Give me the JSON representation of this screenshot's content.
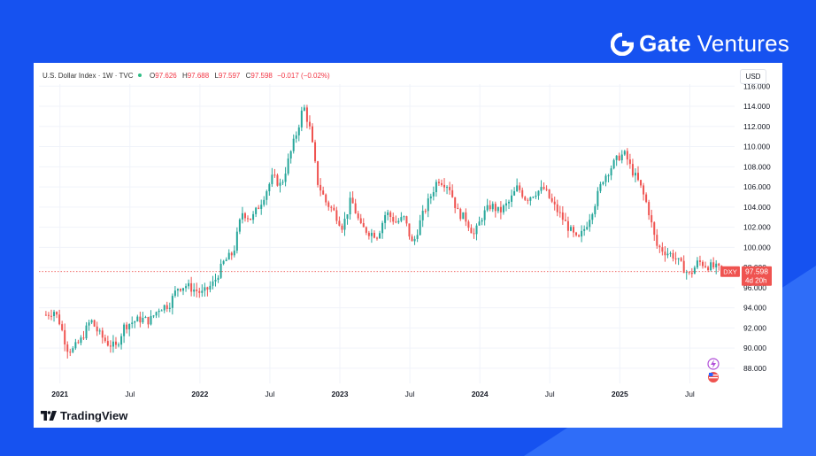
{
  "brand": {
    "name": "Gate",
    "sub": "Ventures",
    "logo_icon": "gate-logo-icon"
  },
  "legend": {
    "title": "U.S. Dollar Index · 1W · TVC",
    "open_label": "O",
    "open": "97.626",
    "high_label": "H",
    "high": "97.688",
    "low_label": "L",
    "low": "97.597",
    "close_label": "C",
    "close": "97.598",
    "change": "−0.017 (−0.02%)"
  },
  "currency_badge": "USD",
  "price_tag": {
    "symbol": "DXY",
    "price": "97.598",
    "countdown": "4d 20h"
  },
  "footer_logo": {
    "name": "TradingView",
    "icon": "tradingview-logo-icon"
  },
  "colors": {
    "up": "#26a69a",
    "down": "#ef5350",
    "accent": "#1652f0",
    "grid": "#f0f3fa"
  },
  "chart_data": {
    "type": "candlestick",
    "interval": "1W",
    "x_ticks": [
      "2021",
      "Jul",
      "2022",
      "Jul",
      "2023",
      "Jul",
      "2024",
      "Jul",
      "2025",
      "Jul"
    ],
    "y_ticks": [
      "88.000",
      "90.000",
      "92.000",
      "94.000",
      "96.000",
      "98.000",
      "100.000",
      "102.000",
      "104.000",
      "106.000",
      "108.000",
      "110.000",
      "112.000",
      "114.000",
      "116.000"
    ],
    "ylim": [
      86.5,
      116.2
    ],
    "x_range": [
      2020.85,
      2025.82
    ],
    "last_close": 97.598,
    "close_series": [
      [
        2020.9,
        93.3
      ],
      [
        2020.96,
        93.7
      ],
      [
        2021.0,
        92.5
      ],
      [
        2021.05,
        90.0
      ],
      [
        2021.09,
        89.8
      ],
      [
        2021.15,
        90.8
      ],
      [
        2021.22,
        92.8
      ],
      [
        2021.28,
        91.4
      ],
      [
        2021.34,
        90.5
      ],
      [
        2021.4,
        90.1
      ],
      [
        2021.46,
        92.2
      ],
      [
        2021.52,
        92.6
      ],
      [
        2021.58,
        92.9
      ],
      [
        2021.64,
        92.7
      ],
      [
        2021.71,
        94.0
      ],
      [
        2021.78,
        94.3
      ],
      [
        2021.84,
        96.0
      ],
      [
        2021.9,
        96.2
      ],
      [
        2021.96,
        95.8
      ],
      [
        2022.02,
        95.4
      ],
      [
        2022.1,
        96.5
      ],
      [
        2022.17,
        98.5
      ],
      [
        2022.24,
        99.5
      ],
      [
        2022.3,
        103.5
      ],
      [
        2022.37,
        102.8
      ],
      [
        2022.44,
        104.6
      ],
      [
        2022.52,
        107.0
      ],
      [
        2022.58,
        106.1
      ],
      [
        2022.64,
        109.0
      ],
      [
        2022.7,
        111.8
      ],
      [
        2022.74,
        114.1
      ],
      [
        2022.79,
        111.5
      ],
      [
        2022.84,
        106.5
      ],
      [
        2022.9,
        104.5
      ],
      [
        2022.96,
        103.5
      ],
      [
        2023.02,
        102.0
      ],
      [
        2023.08,
        104.8
      ],
      [
        2023.15,
        102.0
      ],
      [
        2023.21,
        101.5
      ],
      [
        2023.27,
        101.2
      ],
      [
        2023.33,
        103.5
      ],
      [
        2023.4,
        102.5
      ],
      [
        2023.46,
        102.9
      ],
      [
        2023.52,
        100.2
      ],
      [
        2023.58,
        102.8
      ],
      [
        2023.64,
        104.8
      ],
      [
        2023.7,
        106.8
      ],
      [
        2023.78,
        106.1
      ],
      [
        2023.84,
        103.5
      ],
      [
        2023.9,
        102.8
      ],
      [
        2023.96,
        101.2
      ],
      [
        2024.02,
        103.2
      ],
      [
        2024.08,
        104.2
      ],
      [
        2024.14,
        103.5
      ],
      [
        2024.21,
        104.5
      ],
      [
        2024.27,
        106.0
      ],
      [
        2024.33,
        104.8
      ],
      [
        2024.4,
        105.5
      ],
      [
        2024.46,
        105.8
      ],
      [
        2024.52,
        104.3
      ],
      [
        2024.58,
        103.1
      ],
      [
        2024.64,
        101.8
      ],
      [
        2024.7,
        100.6
      ],
      [
        2024.76,
        102.2
      ],
      [
        2024.82,
        104.3
      ],
      [
        2024.88,
        106.8
      ],
      [
        2024.94,
        108.0
      ],
      [
        2025.0,
        109.1
      ],
      [
        2025.04,
        109.2
      ],
      [
        2025.08,
        107.8
      ],
      [
        2025.14,
        106.3
      ],
      [
        2025.2,
        104.0
      ],
      [
        2025.26,
        100.2
      ],
      [
        2025.32,
        99.6
      ],
      [
        2025.38,
        99.2
      ],
      [
        2025.44,
        98.2
      ],
      [
        2025.5,
        97.2
      ],
      [
        2025.56,
        98.6
      ],
      [
        2025.62,
        98.2
      ],
      [
        2025.68,
        98.0
      ],
      [
        2025.74,
        97.6
      ]
    ]
  }
}
